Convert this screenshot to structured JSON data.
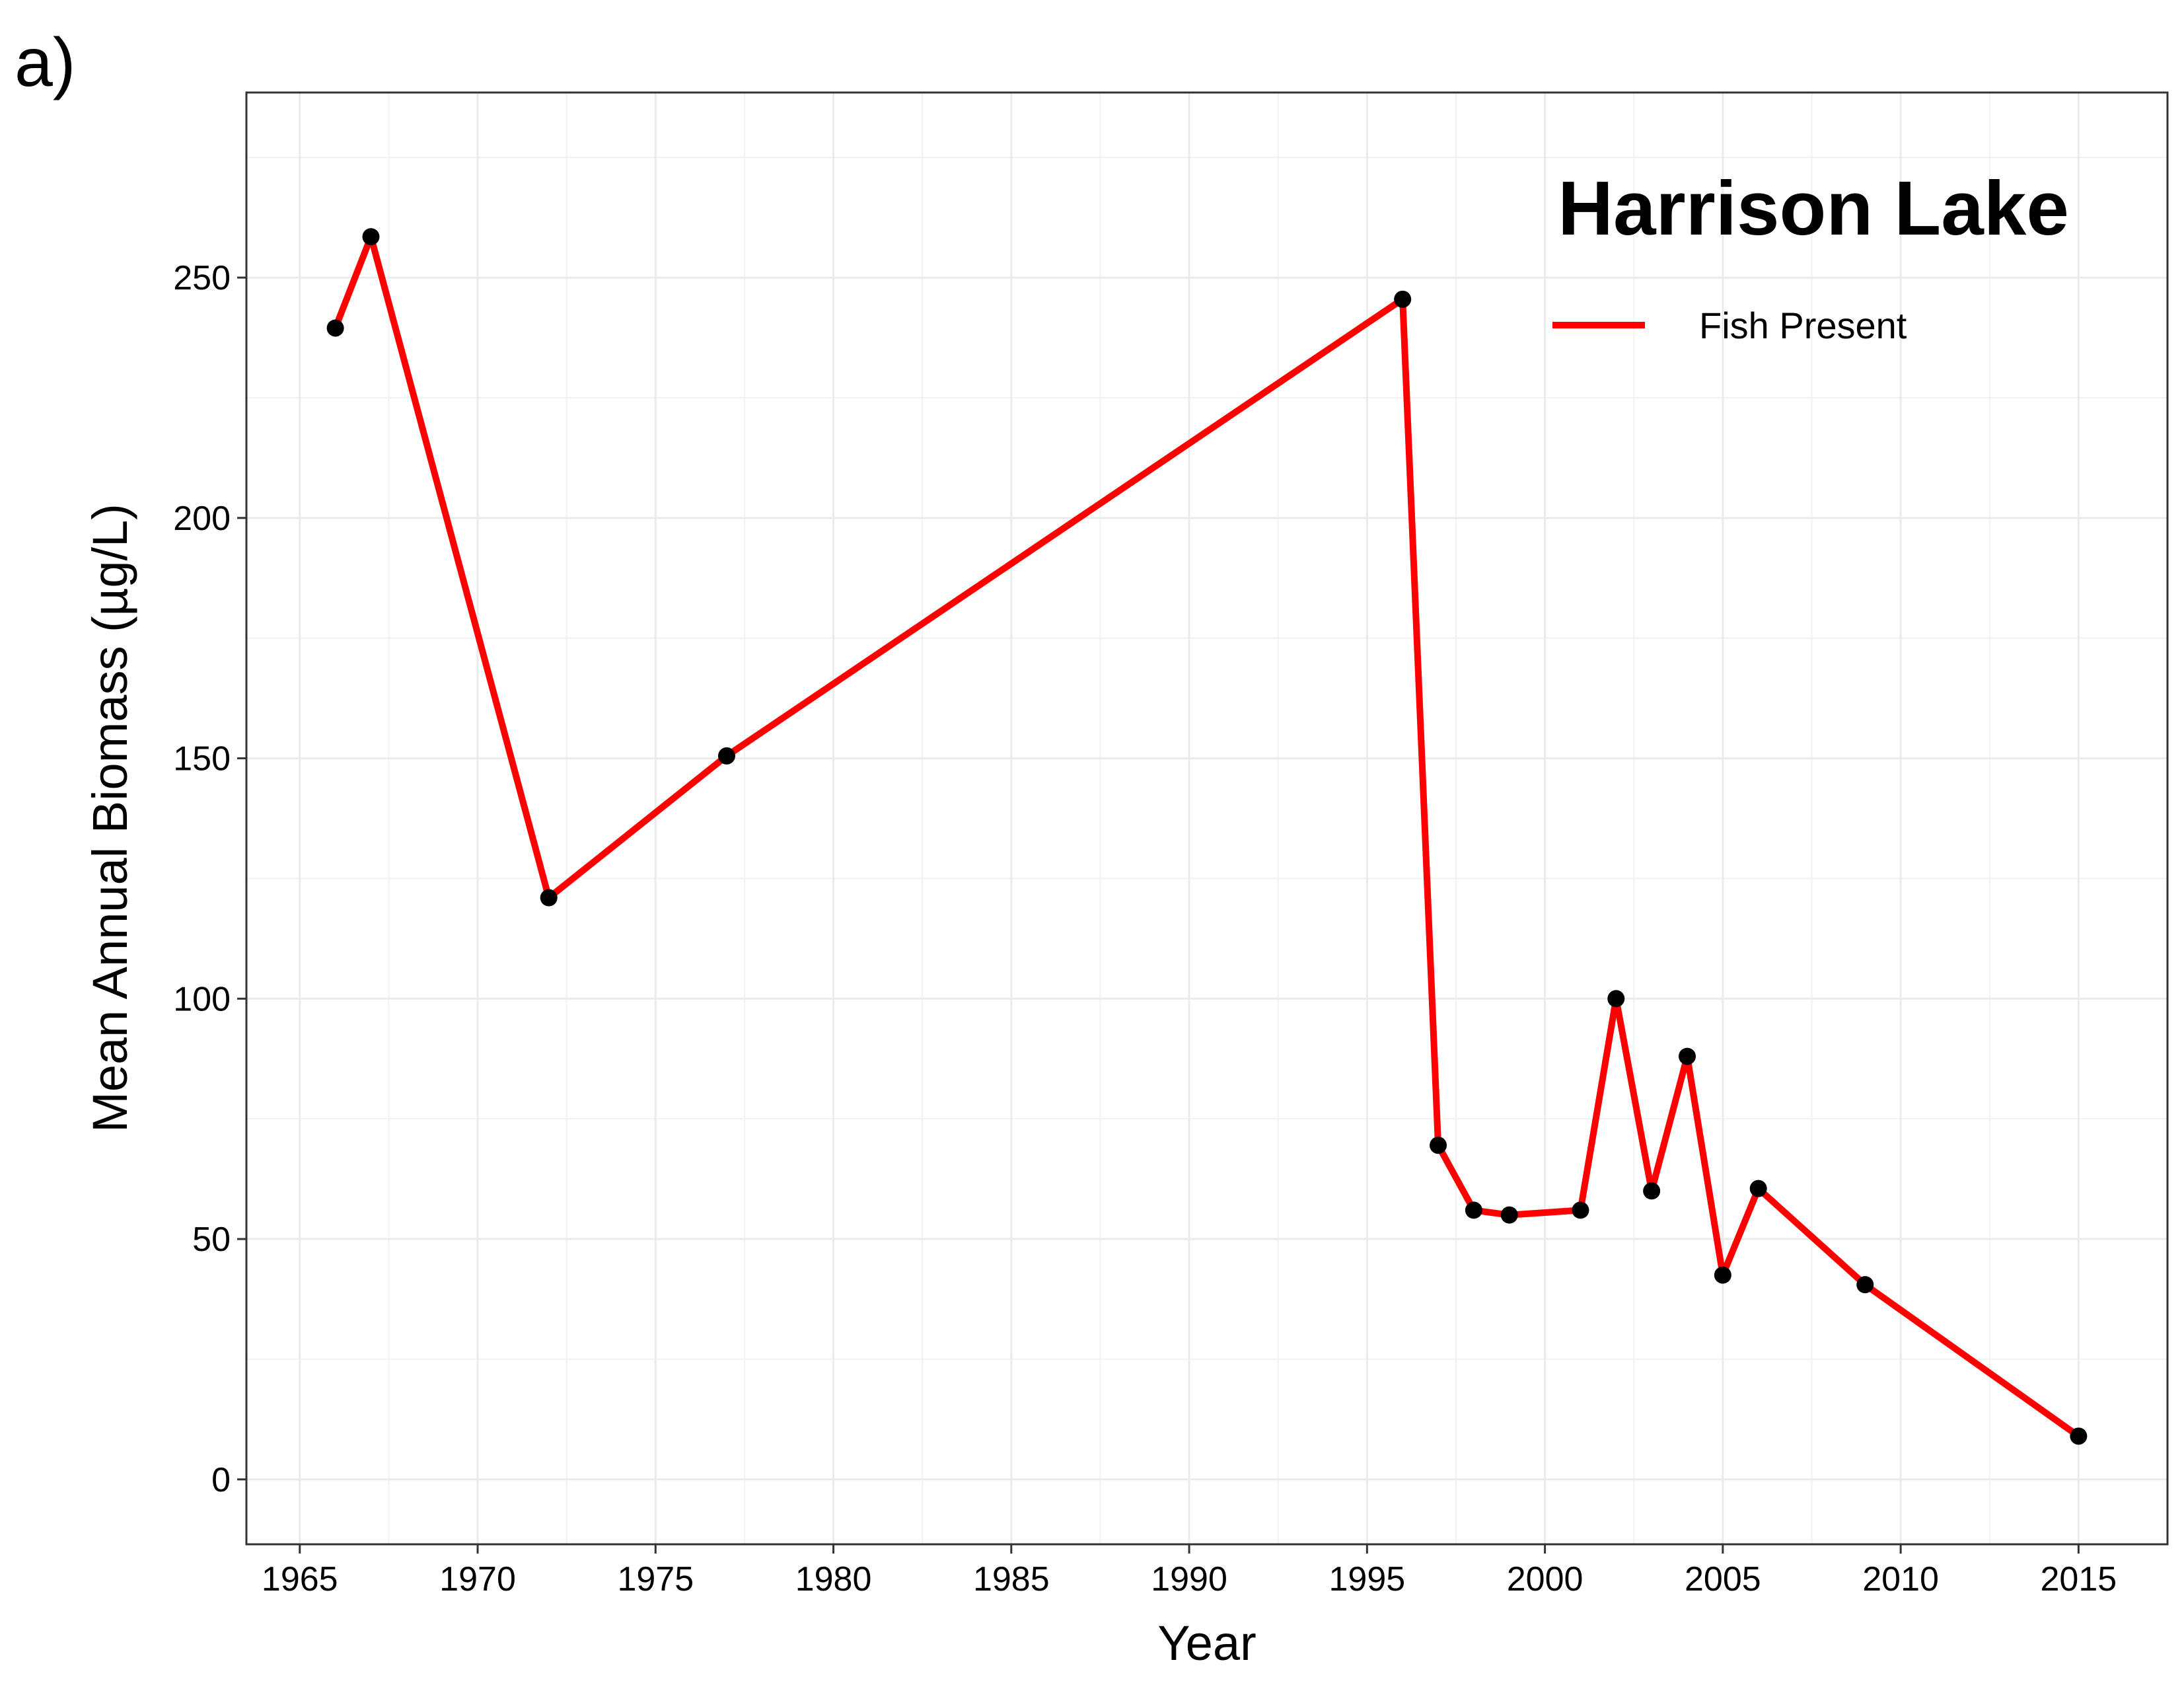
{
  "panel_label": "a)",
  "chart_data": {
    "type": "line",
    "title": "Harrison Lake",
    "xlabel": "Year",
    "ylabel": "Mean Annual Biomass (µg/L)",
    "xlim": [
      1963.5,
      2017.5
    ],
    "ylim": [
      -13.5,
      288.5
    ],
    "x_ticks": [
      1965,
      1970,
      1975,
      1980,
      1985,
      1990,
      1995,
      2000,
      2005,
      2010,
      2015
    ],
    "y_ticks": [
      0,
      50,
      100,
      150,
      200,
      250
    ],
    "grid": true,
    "legend_position": "top-right",
    "series": [
      {
        "name": "Fish Present",
        "color": "#ff0000",
        "marker_color": "#000000",
        "points": [
          {
            "x": 1966,
            "y": 239.5
          },
          {
            "x": 1967,
            "y": 258.5
          },
          {
            "x": 1972,
            "y": 121
          },
          {
            "x": 1977,
            "y": 150.5
          },
          {
            "x": 1996,
            "y": 245.5
          },
          {
            "x": 1997,
            "y": 69.5
          },
          {
            "x": 1998,
            "y": 56
          },
          {
            "x": 1999,
            "y": 55
          },
          {
            "x": 2001,
            "y": 56
          },
          {
            "x": 2002,
            "y": 100
          },
          {
            "x": 2003,
            "y": 60
          },
          {
            "x": 2004,
            "y": 88
          },
          {
            "x": 2005,
            "y": 42.5
          },
          {
            "x": 2006,
            "y": 60.5
          },
          {
            "x": 2009,
            "y": 40.5
          },
          {
            "x": 2015,
            "y": 9
          }
        ]
      }
    ]
  }
}
